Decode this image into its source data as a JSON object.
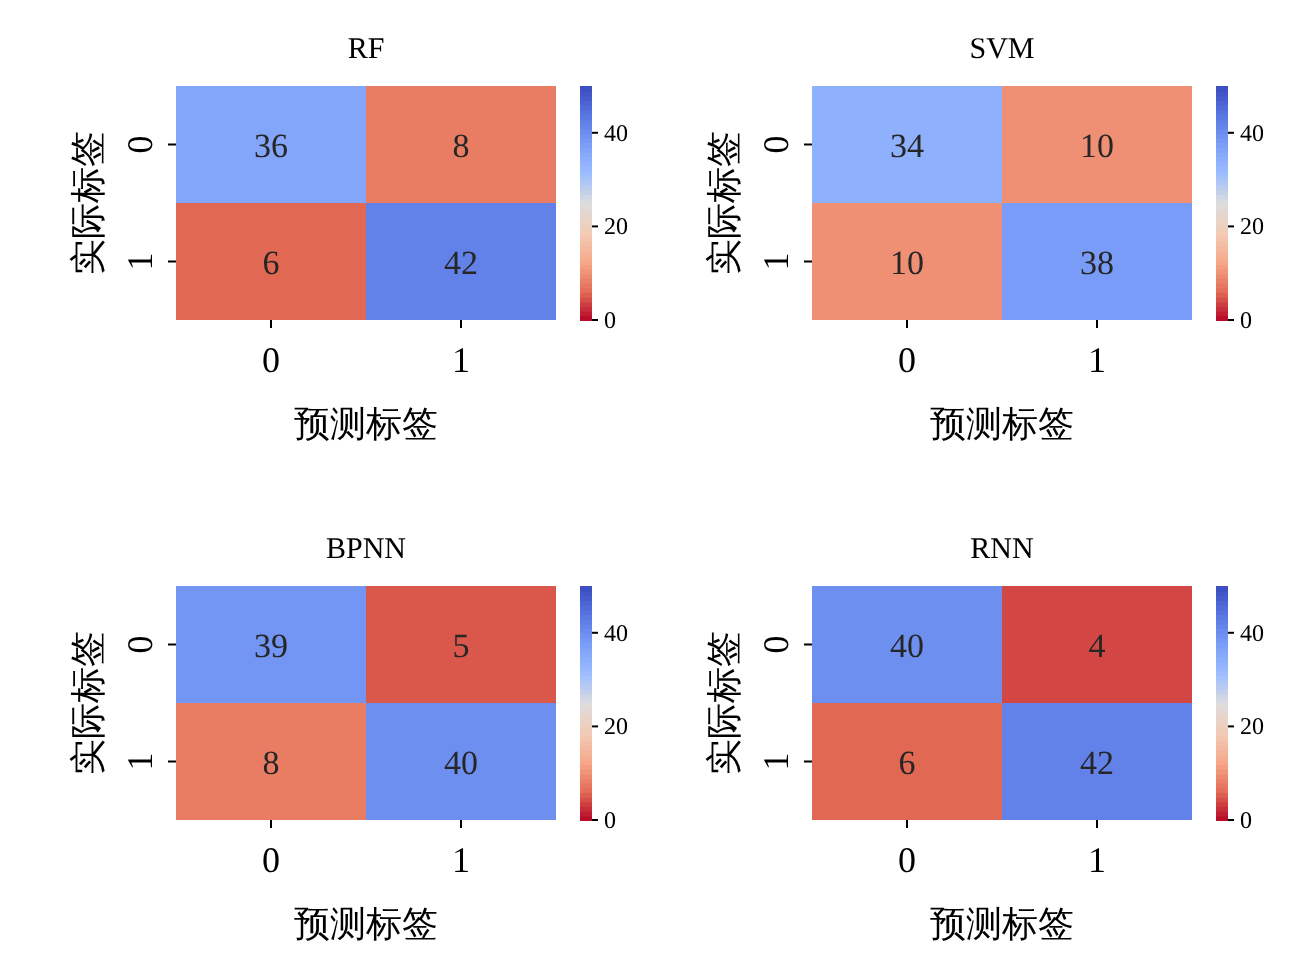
{
  "chart_data": [
    {
      "type": "heatmap",
      "title": "RF",
      "xlabel": "预测标签",
      "ylabel": "实际标签",
      "categories": [
        "0",
        "1"
      ],
      "y_categories": [
        "0",
        "1"
      ],
      "cells": [
        [
          36,
          8
        ],
        [
          6,
          42
        ]
      ],
      "data_labels": true,
      "clim": [
        0,
        50
      ],
      "cticks": [
        0,
        20,
        40
      ]
    },
    {
      "type": "heatmap",
      "title": "SVM",
      "xlabel": "预测标签",
      "ylabel": "实际标签",
      "categories": [
        "0",
        "1"
      ],
      "y_categories": [
        "0",
        "1"
      ],
      "cells": [
        [
          34,
          10
        ],
        [
          10,
          38
        ]
      ],
      "data_labels": true,
      "clim": [
        0,
        50
      ],
      "cticks": [
        0,
        20,
        40
      ]
    },
    {
      "type": "heatmap",
      "title": "BPNN",
      "xlabel": "预测标签",
      "ylabel": "实际标签",
      "categories": [
        "0",
        "1"
      ],
      "y_categories": [
        "0",
        "1"
      ],
      "cells": [
        [
          39,
          5
        ],
        [
          8,
          40
        ]
      ],
      "data_labels": true,
      "clim": [
        0,
        50
      ],
      "cticks": [
        0,
        20,
        40
      ]
    },
    {
      "type": "heatmap",
      "title": "RNN",
      "xlabel": "预测标签",
      "ylabel": "实际标签",
      "categories": [
        "0",
        "1"
      ],
      "y_categories": [
        "0",
        "1"
      ],
      "cells": [
        [
          40,
          4
        ],
        [
          6,
          42
        ]
      ],
      "data_labels": true,
      "clim": [
        0,
        50
      ],
      "cticks": [
        0,
        20,
        40
      ]
    }
  ]
}
